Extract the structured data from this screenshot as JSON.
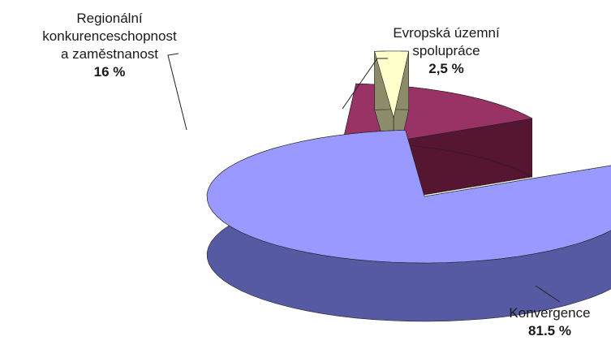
{
  "chart_data": {
    "type": "pie",
    "style": "3d-exploded",
    "slices": [
      {
        "label_lines": [
          "Konvergence"
        ],
        "value": 81.5,
        "value_label": "81.5 %",
        "color": "#9999ff",
        "side_color": "#565aa2"
      },
      {
        "label_lines": [
          "Regionální",
          "konkurenceschopnost",
          "a zaměstnanost"
        ],
        "value": 16,
        "value_label": "16 %",
        "color": "#993366",
        "side_color": "#561530"
      },
      {
        "label_lines": [
          "Evropská územní",
          "spolupráce"
        ],
        "value": 2.5,
        "value_label": "2,5 %",
        "color": "#ffffcc",
        "side_color": "#8d8c6a"
      }
    ]
  }
}
